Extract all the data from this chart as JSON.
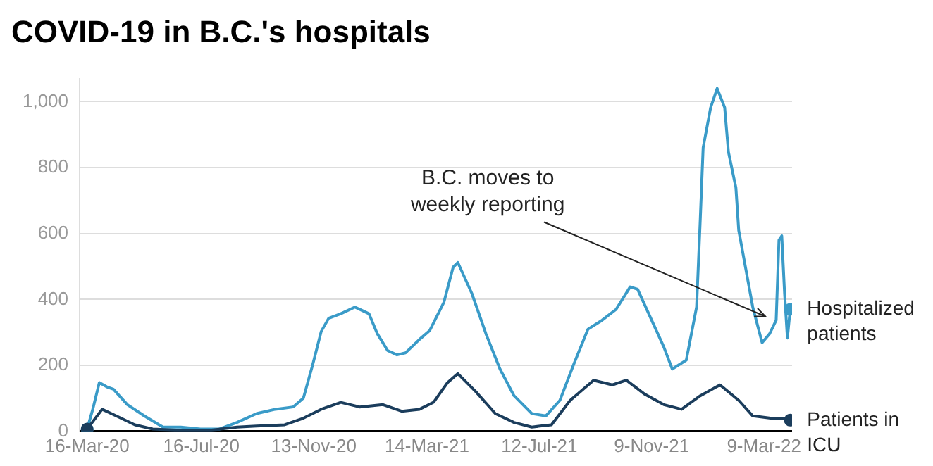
{
  "chart_data": {
    "type": "line",
    "title": "COVID-19 in B.C.'s hospitals",
    "xlim": [
      "2020-03-08",
      "2022-04-08"
    ],
    "ylim": [
      0,
      1070
    ],
    "xticks": [
      {
        "value": "2020-03-16",
        "label": "16-Mar-20"
      },
      {
        "value": "2020-07-16",
        "label": "16-Jul-20"
      },
      {
        "value": "2020-11-13",
        "label": "13-Nov-20"
      },
      {
        "value": "2021-03-14",
        "label": "14-Mar-21"
      },
      {
        "value": "2021-07-12",
        "label": "12-Jul-21"
      },
      {
        "value": "2021-11-09",
        "label": "9-Nov-21"
      },
      {
        "value": "2022-03-09",
        "label": "9-Mar-22"
      }
    ],
    "yticks": [
      0,
      200,
      400,
      600,
      800,
      {
        "value": 1000,
        "label": "1,000"
      }
    ],
    "grid": "y",
    "legend": false,
    "annotations": [
      {
        "text": "B.C. moves to weekly reporting",
        "x": "2022-03-15",
        "y": 340
      }
    ],
    "series": [
      {
        "name": "Hospitalized patients",
        "color": "#3a9bc8",
        "x": [
          "2020-03-16",
          "2020-03-22",
          "2020-03-29",
          "2020-04-06",
          "2020-04-13",
          "2020-04-28",
          "2020-05-16",
          "2020-06-05",
          "2020-06-24",
          "2020-07-15",
          "2020-08-04",
          "2020-08-23",
          "2020-09-13",
          "2020-10-03",
          "2020-10-22",
          "2020-11-02",
          "2020-11-12",
          "2020-11-21",
          "2020-11-29",
          "2020-12-12",
          "2020-12-27",
          "2021-01-11",
          "2021-01-20",
          "2021-01-31",
          "2021-02-10",
          "2021-02-19",
          "2021-03-06",
          "2021-03-17",
          "2021-04-01",
          "2021-04-11",
          "2021-04-16",
          "2021-05-01",
          "2021-05-16",
          "2021-05-31",
          "2021-06-15",
          "2021-07-04",
          "2021-07-19",
          "2021-08-03",
          "2021-08-18",
          "2021-09-02",
          "2021-09-17",
          "2021-10-02",
          "2021-10-17",
          "2021-10-25",
          "2021-11-07",
          "2021-11-22",
          "2021-12-01",
          "2021-12-16",
          "2021-12-27",
          "2021-12-31",
          "2022-01-03",
          "2022-01-11",
          "2022-01-18",
          "2022-01-26",
          "2022-01-30",
          "2022-02-07",
          "2022-02-10",
          "2022-02-25",
          "2022-03-07",
          "2022-03-15",
          "2022-03-22",
          "2022-03-25",
          "2022-03-28",
          "2022-03-31",
          "2022-04-03",
          "2022-04-06"
        ],
        "values": [
          7,
          67,
          148,
          135,
          128,
          81,
          47,
          13,
          13,
          7,
          7,
          27,
          54,
          67,
          74,
          101,
          203,
          303,
          343,
          357,
          377,
          357,
          296,
          245,
          232,
          238,
          279,
          306,
          391,
          498,
          512,
          418,
          296,
          189,
          108,
          54,
          47,
          94,
          205,
          310,
          337,
          370,
          438,
          431,
          350,
          256,
          189,
          216,
          377,
          647,
          860,
          982,
          1040,
          982,
          848,
          739,
          610,
          377,
          269,
          296,
          337,
          580,
          593,
          418,
          283,
          370
        ]
      },
      {
        "name": "Patients in ICU",
        "color": "#1b3d5c",
        "x": [
          "2020-03-16",
          "2020-04-01",
          "2020-04-16",
          "2020-05-06",
          "2020-05-25",
          "2020-06-24",
          "2020-07-24",
          "2020-08-23",
          "2020-09-13",
          "2020-10-13",
          "2020-11-02",
          "2020-11-21",
          "2020-12-12",
          "2021-01-01",
          "2021-01-26",
          "2021-02-15",
          "2021-03-06",
          "2021-03-21",
          "2021-04-05",
          "2021-04-16",
          "2021-05-05",
          "2021-05-26",
          "2021-06-15",
          "2021-07-04",
          "2021-07-25",
          "2021-08-14",
          "2021-09-08",
          "2021-09-28",
          "2021-10-13",
          "2021-11-01",
          "2021-11-22",
          "2021-12-11",
          "2021-12-31",
          "2022-01-21",
          "2022-02-10",
          "2022-02-25",
          "2022-03-16",
          "2022-03-31",
          "2022-04-06"
        ],
        "values": [
          7,
          67,
          47,
          20,
          7,
          3,
          3,
          13,
          16,
          20,
          40,
          67,
          88,
          74,
          81,
          61,
          67,
          88,
          148,
          175,
          121,
          54,
          27,
          13,
          20,
          94,
          155,
          141,
          155,
          114,
          81,
          67,
          108,
          141,
          94,
          47,
          40,
          40,
          34
        ]
      }
    ]
  }
}
